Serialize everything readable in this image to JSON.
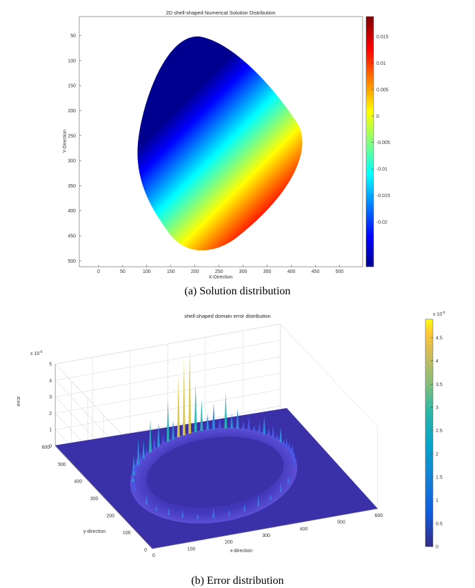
{
  "figures": {
    "a": {
      "caption": "(a) Solution distribution",
      "title": "2D shell-shaped Numerical Solution Distribution",
      "xlabel": "X-Direction",
      "ylabel": "Y-Direction",
      "colorbar_ticks": [
        "0.015",
        "0.01",
        "0.005",
        "0",
        "-0.005",
        "-0.01",
        "-0.015",
        "-0.02"
      ]
    },
    "b": {
      "caption": "(b) Error distribution",
      "title": "shell-shaped domain error distribution",
      "zlabel": "error",
      "ylabel": "y-direction",
      "xlabel": "x-direction",
      "z_exponent": "x 10",
      "z_exponent_power": "-6",
      "colorbar_exponent": "x 10",
      "colorbar_exponent_power": "-6",
      "colorbar_ticks": [
        "4.5",
        "4",
        "3.5",
        "3",
        "2.5",
        "2",
        "1.5",
        "1",
        "0.5",
        "0"
      ]
    }
  },
  "chart_data": [
    {
      "type": "heatmap",
      "title": "2D shell-shaped Numerical Solution Distribution",
      "xlabel": "X-Direction",
      "ylabel": "Y-Direction",
      "xlim": [
        -40,
        548
      ],
      "ylim": [
        512,
        12
      ],
      "xticks": [
        0,
        50,
        100,
        150,
        200,
        250,
        300,
        350,
        400,
        450,
        500
      ],
      "yticks": [
        50,
        100,
        150,
        200,
        250,
        300,
        350,
        400,
        450,
        500
      ],
      "colorbar_range": [
        -0.0285,
        0.0188
      ],
      "colormap": "jet",
      "domain": "shell-shaped region spanning x ≈ 90–430, y ≈ 45–470",
      "value_trend": "increases along the direction toward large x and large y (lower-right), decreasing toward upper-left",
      "grid": false
    },
    {
      "type": "surface3d",
      "title": "shell-shaped domain error distribution",
      "xlabel": "x-direction",
      "ylabel": "y-direction",
      "zlabel": "error",
      "xticks": [
        0,
        100,
        200,
        300,
        400,
        500,
        600
      ],
      "yticks": [
        0,
        100,
        200,
        300,
        400,
        500,
        600
      ],
      "zticks": [
        0,
        1,
        2,
        3,
        4,
        5
      ],
      "z_scale": 1e-06,
      "colorbar_range": [
        0,
        4.9
      ],
      "colormap": "parula",
      "peak_error_approx": 4.8,
      "grid": true
    }
  ]
}
